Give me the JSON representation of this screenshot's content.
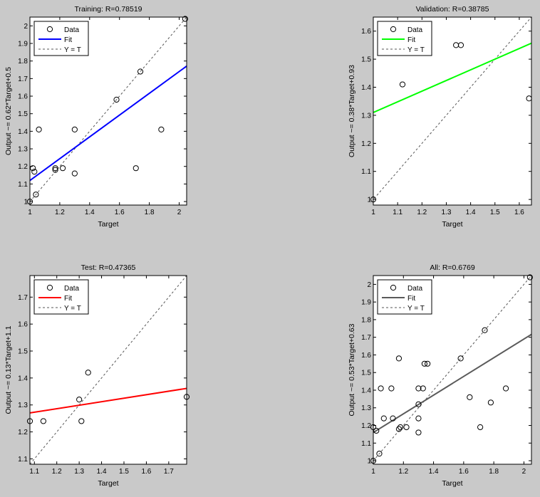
{
  "figure_background": "#c9c9c9",
  "legend_labels": {
    "data": "Data",
    "fit": "Fit",
    "identity": "Y = T"
  },
  "chart_data": [
    {
      "type": "scatter",
      "title": "Training: R=0.78519",
      "xlabel": "Target",
      "ylabel": "Output ~= 0.62*Target+0.5",
      "xlim": [
        1,
        2.05
      ],
      "ylim": [
        0.98,
        2.05
      ],
      "xticks": [
        "1",
        "1.2",
        "1.4",
        "1.6",
        "1.8",
        "2"
      ],
      "yticks": [
        "1",
        "1.1",
        "1.2",
        "1.3",
        "1.4",
        "1.5",
        "1.6",
        "1.7",
        "1.8",
        "1.9",
        "2"
      ],
      "fit_color": "#0000ff",
      "fit": {
        "slope": 0.62,
        "intercept": 0.5
      },
      "points": [
        [
          1.0,
          1.0
        ],
        [
          1.02,
          1.19
        ],
        [
          1.03,
          1.17
        ],
        [
          1.04,
          1.04
        ],
        [
          1.06,
          1.41
        ],
        [
          1.17,
          1.18
        ],
        [
          1.17,
          1.19
        ],
        [
          1.22,
          1.19
        ],
        [
          1.3,
          1.16
        ],
        [
          1.3,
          1.41
        ],
        [
          1.58,
          1.58
        ],
        [
          1.71,
          1.19
        ],
        [
          1.74,
          1.74
        ],
        [
          1.88,
          1.41
        ],
        [
          2.04,
          2.04
        ]
      ],
      "grid": false,
      "legend_position": "top-left"
    },
    {
      "type": "scatter",
      "title": "Validation: R=0.38785",
      "xlabel": "Target",
      "ylabel": "Output ~= 0.38*Target+0.93",
      "xlim": [
        1,
        1.65
      ],
      "ylim": [
        0.98,
        1.65
      ],
      "xticks": [
        "1",
        "1.1",
        "1.2",
        "1.3",
        "1.4",
        "1.5",
        "1.6"
      ],
      "yticks": [
        "1",
        "1.1",
        "1.2",
        "1.3",
        "1.4",
        "1.5",
        "1.6"
      ],
      "fit_color": "#00ff00",
      "fit": {
        "slope": 0.38,
        "intercept": 0.93
      },
      "points": [
        [
          1.0,
          1.0
        ],
        [
          1.12,
          1.41
        ],
        [
          1.34,
          1.55
        ],
        [
          1.36,
          1.55
        ],
        [
          1.64,
          1.36
        ]
      ],
      "grid": false,
      "legend_position": "top-left"
    },
    {
      "type": "scatter",
      "title": "Test: R=0.47365",
      "xlabel": "Target",
      "ylabel": "Output ~= 0.13*Target+1.1",
      "xlim": [
        1.08,
        1.78
      ],
      "ylim": [
        1.08,
        1.78
      ],
      "xticks": [
        "1.1",
        "1.2",
        "1.3",
        "1.4",
        "1.5",
        "1.6",
        "1.7"
      ],
      "yticks": [
        "1.1",
        "1.2",
        "1.3",
        "1.4",
        "1.5",
        "1.6",
        "1.7"
      ],
      "fit_color": "#ff0000",
      "fit": {
        "slope": 0.13,
        "intercept": 1.13
      },
      "points": [
        [
          1.08,
          1.24
        ],
        [
          1.14,
          1.24
        ],
        [
          1.3,
          1.32
        ],
        [
          1.31,
          1.24
        ],
        [
          1.34,
          1.42
        ],
        [
          1.78,
          1.33
        ]
      ],
      "grid": false,
      "legend_position": "top-left"
    },
    {
      "type": "scatter",
      "title": "All: R=0.6769",
      "xlabel": "Target",
      "ylabel": "Output ~= 0.53*Target+0.63",
      "xlim": [
        1,
        2.05
      ],
      "ylim": [
        0.98,
        2.05
      ],
      "xticks": [
        "1",
        "1.2",
        "1.4",
        "1.6",
        "1.8",
        "2"
      ],
      "yticks": [
        "1",
        "1.1",
        "1.2",
        "1.3",
        "1.4",
        "1.5",
        "1.6",
        "1.7",
        "1.8",
        "1.9",
        "2"
      ],
      "fit_color": "#5a5a5a",
      "fit": {
        "slope": 0.53,
        "intercept": 0.63
      },
      "points": [
        [
          1.0,
          1.0
        ],
        [
          1.0,
          1.19
        ],
        [
          1.02,
          1.17
        ],
        [
          1.04,
          1.04
        ],
        [
          1.05,
          1.41
        ],
        [
          1.07,
          1.24
        ],
        [
          1.12,
          1.41
        ],
        [
          1.13,
          1.24
        ],
        [
          1.17,
          1.18
        ],
        [
          1.17,
          1.58
        ],
        [
          1.18,
          1.19
        ],
        [
          1.22,
          1.19
        ],
        [
          1.3,
          1.16
        ],
        [
          1.3,
          1.24
        ],
        [
          1.3,
          1.32
        ],
        [
          1.3,
          1.41
        ],
        [
          1.33,
          1.41
        ],
        [
          1.34,
          1.55
        ],
        [
          1.36,
          1.55
        ],
        [
          1.58,
          1.58
        ],
        [
          1.64,
          1.36
        ],
        [
          1.71,
          1.19
        ],
        [
          1.74,
          1.74
        ],
        [
          1.78,
          1.33
        ],
        [
          1.88,
          1.41
        ],
        [
          2.04,
          2.04
        ]
      ],
      "grid": false,
      "legend_position": "top-left"
    }
  ]
}
